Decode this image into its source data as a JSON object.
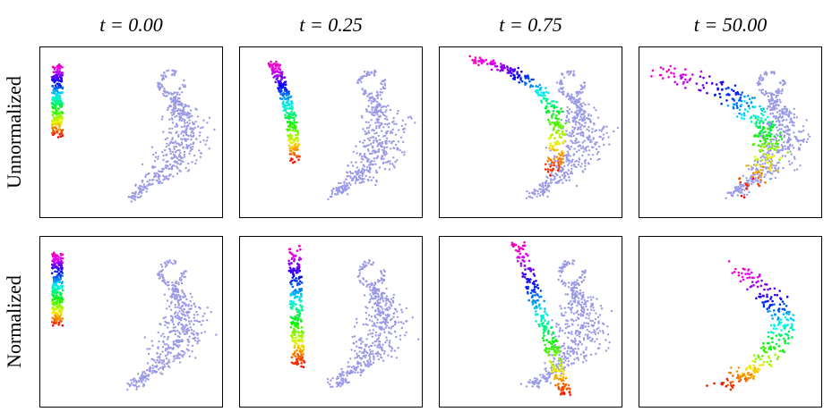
{
  "columns": [
    "t = 0.00",
    "t = 0.25",
    "t = 0.75",
    "t = 50.00"
  ],
  "rows": [
    "Unnormalized",
    "Normalized"
  ]
}
